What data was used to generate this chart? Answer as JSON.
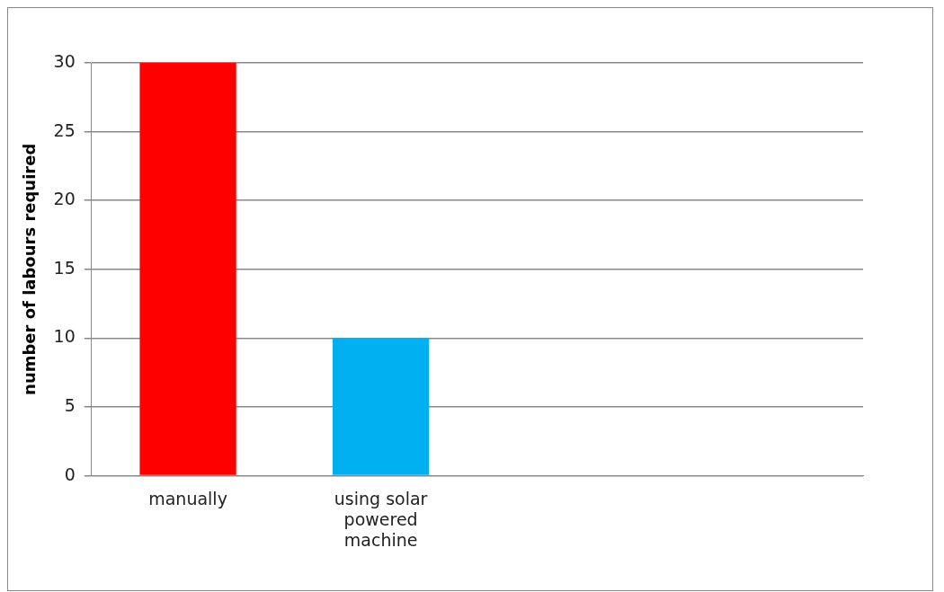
{
  "chart_data": {
    "type": "bar",
    "ylabel": "number of labours required",
    "categories": [
      "manually",
      "using solar powered machine",
      null,
      null
    ],
    "values": [
      30,
      10,
      null,
      null
    ],
    "colors": [
      "#ff0000",
      "#00b0f0",
      "#ff0000",
      "#00b0f0"
    ],
    "ylim": [
      0,
      30
    ],
    "yticks": [
      0,
      5,
      10,
      15,
      20,
      25,
      30
    ],
    "grid": "y",
    "legend": false
  }
}
